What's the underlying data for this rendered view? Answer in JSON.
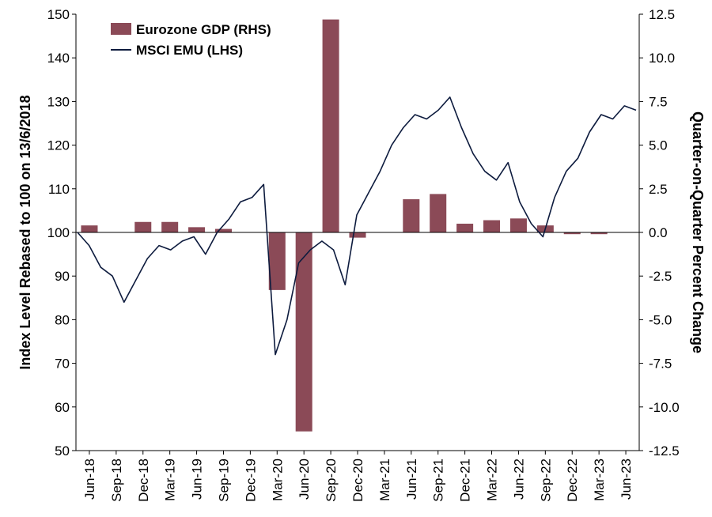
{
  "chart_data": {
    "type": "bar+line",
    "title": "",
    "legend": {
      "placement": "top-left",
      "entries": [
        {
          "label": "Eurozone GDP (RHS)",
          "kind": "bar",
          "color": "#8b4a57"
        },
        {
          "label": "MSCI EMU (LHS)",
          "kind": "line",
          "color": "#0d1b3e"
        }
      ]
    },
    "y_left": {
      "label": "Index Level Rebased to 100 on 13/6/2018",
      "range": [
        50,
        150
      ],
      "ticks": [
        "150",
        "140",
        "130",
        "120",
        "110",
        "100",
        "90",
        "80",
        "70",
        "60",
        "50"
      ]
    },
    "y_right": {
      "label": "Quarter-on-Quarter Percent Change",
      "range": [
        -12.5,
        12.5
      ],
      "ticks": [
        "12.5",
        "10.0",
        "7.5",
        "5.0",
        "2.5",
        "0.0",
        "-2.5",
        "-5.0",
        "-7.5",
        "-10.0",
        "-12.5"
      ]
    },
    "x_ticks": [
      "Jun-18",
      "Sep-18",
      "Dec-18",
      "Mar-19",
      "Jun-19",
      "Sep-19",
      "Dec-19",
      "Mar-20",
      "Jun-20",
      "Sep-20",
      "Dec-20",
      "Mar-21",
      "Jun-21",
      "Sep-21",
      "Dec-21",
      "Mar-22",
      "Jun-22",
      "Sep-22",
      "Dec-22",
      "Mar-23",
      "Jun-23"
    ],
    "grid": false,
    "bar_series": {
      "name": "Eurozone GDP (RHS)",
      "color": "#8b4a57",
      "categories": [
        "Jun-18",
        "Sep-18",
        "Dec-18",
        "Mar-19",
        "Jun-19",
        "Sep-19",
        "Dec-19",
        "Mar-20",
        "Jun-20",
        "Sep-20",
        "Dec-20",
        "Mar-21",
        "Jun-21",
        "Sep-21",
        "Dec-21",
        "Mar-22",
        "Jun-22",
        "Sep-22",
        "Dec-22",
        "Mar-23",
        "Jun-23"
      ],
      "values": [
        0.4,
        0.0,
        0.6,
        0.6,
        0.3,
        0.2,
        0.0,
        -3.3,
        -11.4,
        12.2,
        -0.3,
        0.0,
        1.9,
        2.2,
        0.5,
        0.7,
        0.8,
        0.4,
        -0.1,
        -0.1,
        0.0
      ]
    },
    "line_series": {
      "name": "MSCI EMU (LHS)",
      "color": "#0d1b3e",
      "x": [
        "Jun-18",
        "Aug-18",
        "Sep-18",
        "Nov-18",
        "Dec-18",
        "Jan-19",
        "Mar-19",
        "Apr-19",
        "May-19",
        "Jun-19",
        "Jul-19",
        "Aug-19",
        "Sep-19",
        "Oct-19",
        "Nov-19",
        "Dec-19",
        "Feb-20",
        "Mar-20",
        "Apr-20",
        "Jun-20",
        "Jul-20",
        "Aug-20",
        "Oct-20",
        "Nov-20",
        "Dec-20",
        "Feb-21",
        "Mar-21",
        "May-21",
        "Jul-21",
        "Aug-21",
        "Sep-21",
        "Nov-21",
        "Dec-21",
        "Jan-22",
        "Mar-22",
        "Apr-22",
        "May-22",
        "Jun-22",
        "Aug-22",
        "Sep-22",
        "Oct-22",
        "Nov-22",
        "Dec-22",
        "Feb-23",
        "Mar-23",
        "Apr-23",
        "Jun-23",
        "Jul-23",
        "Aug-23"
      ],
      "values": [
        100,
        97,
        92,
        90,
        84,
        89,
        94,
        97,
        96,
        98,
        99,
        95,
        100,
        103,
        107,
        108,
        111,
        72,
        80,
        93,
        96,
        98,
        96,
        88,
        104,
        109,
        114,
        120,
        124,
        127,
        126,
        128,
        131,
        124,
        118,
        114,
        112,
        116,
        107,
        102,
        99,
        108,
        114,
        117,
        123,
        127,
        126,
        129,
        128
      ]
    }
  }
}
